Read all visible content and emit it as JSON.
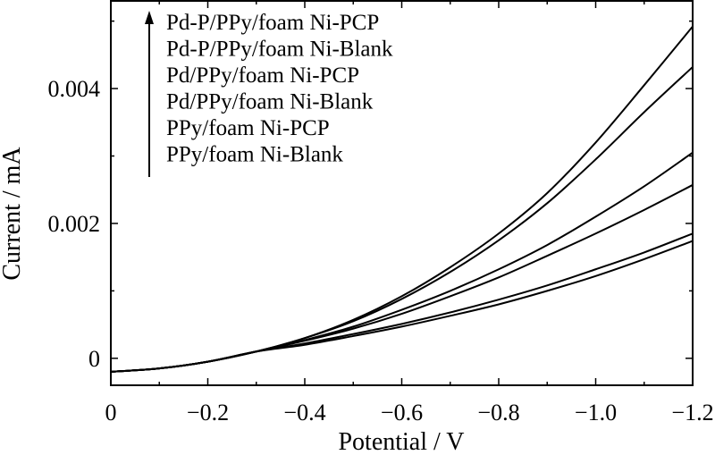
{
  "chart_data": {
    "type": "line",
    "xlabel": "Potential / V",
    "ylabel": "Current / mA",
    "xlim": [
      0,
      -1.2
    ],
    "ylim": [
      -0.0004,
      0.0053
    ],
    "x_reversed": true,
    "grid": false,
    "legend_placement": "top-left",
    "legend_arrow": "up",
    "xticks": [
      0,
      -0.2,
      -0.4,
      -0.6,
      -0.8,
      -1.0,
      -1.2
    ],
    "xtick_labels": [
      "0",
      "−0.2",
      "−0.4",
      "−0.6",
      "−0.8",
      "−1.0",
      "−1.2"
    ],
    "yticks": [
      0,
      0.002,
      0.004
    ],
    "ytick_labels": [
      "0",
      "0.002",
      "0.004"
    ],
    "x": [
      0,
      -0.1,
      -0.2,
      -0.3,
      -0.4,
      -0.5,
      -0.6,
      -0.7,
      -0.8,
      -0.9,
      -1.0,
      -1.1,
      -1.2
    ],
    "series": [
      {
        "name": "Pd-P/PPy/foam Ni-PCP",
        "values": [
          -0.0002,
          -0.00015,
          -5e-05,
          0.0001,
          0.0003,
          0.00057,
          0.00092,
          0.00135,
          0.00185,
          0.00245,
          0.0032,
          0.00405,
          0.00492
        ]
      },
      {
        "name": "Pd-P/PPy/foam Ni-Blank",
        "values": [
          -0.0002,
          -0.00015,
          -5e-05,
          0.0001,
          0.0003,
          0.00055,
          0.00088,
          0.00128,
          0.00175,
          0.0023,
          0.00295,
          0.00365,
          0.00432
        ]
      },
      {
        "name": "Pd/PPy/foam Ni-PCP",
        "values": [
          -0.0002,
          -0.00015,
          -5e-05,
          0.0001,
          0.00027,
          0.00047,
          0.00072,
          0.001,
          0.00132,
          0.00168,
          0.0021,
          0.00255,
          0.00305
        ]
      },
      {
        "name": "Pd/PPy/foam Ni-Blank",
        "values": [
          -0.0002,
          -0.00015,
          -5e-05,
          0.0001,
          0.00026,
          0.00044,
          0.00066,
          0.00092,
          0.0012,
          0.00152,
          0.00185,
          0.0022,
          0.00257
        ]
      },
      {
        "name": "PPy/foam Ni-PCP",
        "values": [
          -0.0002,
          -0.00015,
          -5e-05,
          0.0001,
          0.00022,
          0.00036,
          0.00051,
          0.00068,
          0.00087,
          0.00108,
          0.00132,
          0.00157,
          0.00185
        ]
      },
      {
        "name": "PPy/foam Ni-Blank",
        "values": [
          -0.0002,
          -0.00015,
          -5e-05,
          0.0001,
          0.0002,
          0.00033,
          0.00047,
          0.00063,
          0.0008,
          0.001,
          0.00122,
          0.00147,
          0.00174
        ]
      }
    ]
  }
}
